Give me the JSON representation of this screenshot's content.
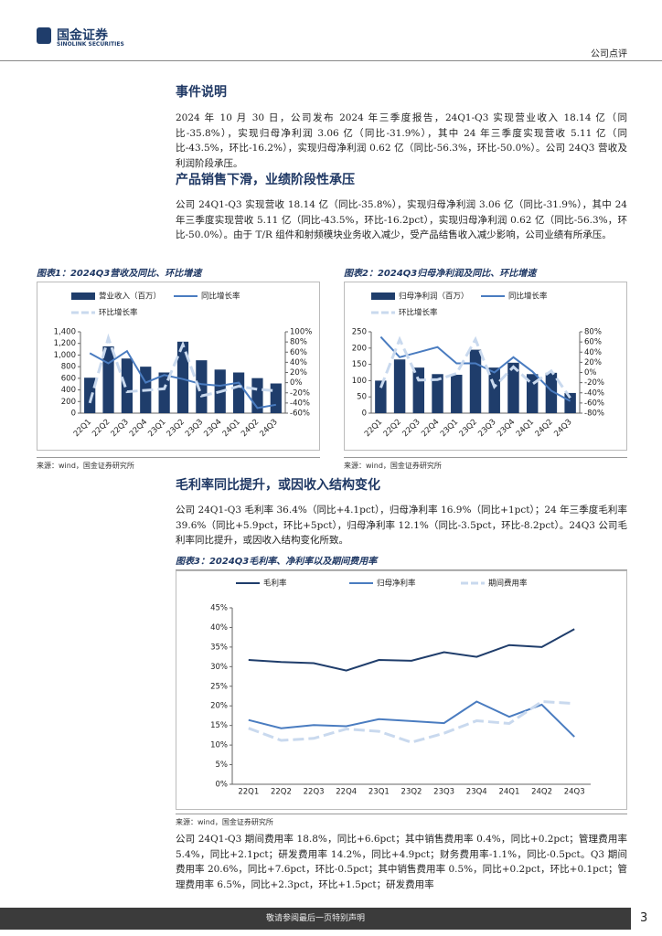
{
  "header": {
    "logo_cn": "国金证券",
    "logo_en": "SINOLINK SECURITIES",
    "doc_type": "公司点评"
  },
  "sections": [
    {
      "heading": "事件说明",
      "paragraph": "2024 年 10 月 30 日，公司发布 2024 年三季度报告，24Q1-Q3 实现营业收入 18.14 亿（同比-35.8%），实现归母净利润 3.06 亿（同比-31.9%），其中 24 年三季度实现营收 5.11 亿（同比-43.5%，环比-16.2%），实现归母净利润 0.62 亿（同比-56.3%，环比-50.0%）。公司 24Q3 营收及利润阶段承压。"
    },
    {
      "heading": "产品销售下滑，业绩阶段性承压",
      "paragraph": "公司 24Q1-Q3 实现营收 18.14 亿（同比-35.8%），实现归母净利润 3.06 亿（同比-31.9%），其中 24 年三季度实现营收 5.11 亿（同比-43.5%，环比-16.2pct），实现归母净利润 0.62 亿（同比-56.3%，环比-50.0%）。由于 T/R 组件和射频模块业务收入减少，受产品结售收入减少影响，公司业绩有所承压。"
    },
    {
      "heading": "毛利率同比提升，或因收入结构变化",
      "paragraph": "公司 24Q1-Q3 毛利率 36.4%（同比+4.1pct），归母净利率 16.9%（同比+1pct）；24 年三季度毛利率 39.6%（同比+5.9pct，环比+5pct），归母净利率 12.1%（同比-3.5pct，环比-8.2pct）。24Q3 公司毛利率同比提升，或因收入结构变化所致。"
    },
    {
      "paragraph": "公司 24Q1-Q3 期间费用率 18.8%，同比+6.6pct；其中销售费用率 0.4%，同比+0.2pct；管理费用率 5.4%，同比+2.1pct；研发费用率 14.2%，同比+4.9pct；财务费用率-1.1%，同比-0.5pct。Q3 期间费用率 20.6%，同比+7.6pct，环比-0.5pct；其中销售费用率 0.5%，同比+0.2pct，环比+0.1pct；管理费用率 6.5%，同比+2.3pct，环比+1.5pct；研发费用率"
    }
  ],
  "figures": [
    {
      "title": "图表1：2024Q3营收及同比、环比增速",
      "source": "来源：wind，国金证券研究所"
    },
    {
      "title": "图表2：2024Q3归母净利润及同比、环比增速",
      "source": "来源：wind，国金证券研究所"
    },
    {
      "title": "图表3：2024Q3毛利率、净利率以及期间费用率",
      "source": "来源：wind，国金证券研究所"
    }
  ],
  "chart_data": [
    {
      "type": "combo",
      "categories": [
        "22Q1",
        "22Q2",
        "22Q3",
        "22Q4",
        "23Q1",
        "23Q2",
        "23Q3",
        "23Q4",
        "24Q1",
        "24Q2",
        "24Q3"
      ],
      "ylim": [
        0,
        1400
      ],
      "yticks": [
        0,
        200,
        400,
        600,
        800,
        {
          "value": 1000,
          "label": "1,000"
        },
        {
          "value": 1200,
          "label": "1,200"
        },
        {
          "value": 1400,
          "label": "1,400"
        }
      ],
      "y2lim": [
        -60,
        100
      ],
      "y2ticks": [
        {
          "value": -60,
          "label": "-60%"
        },
        {
          "value": -40,
          "label": "-40%"
        },
        {
          "value": -20,
          "label": "-20%"
        },
        {
          "value": 0,
          "label": "0%"
        },
        {
          "value": 20,
          "label": "20%"
        },
        {
          "value": 40,
          "label": "40%"
        },
        {
          "value": 60,
          "label": "60%"
        },
        {
          "value": 80,
          "label": "80%"
        },
        {
          "value": 100,
          "label": "100%"
        }
      ],
      "series": [
        {
          "name": "营业收入（百万）",
          "type": "bar",
          "color": "#1f3d6b",
          "values": [
            610,
            1150,
            940,
            800,
            700,
            1230,
            910,
            750,
            700,
            603,
            511
          ]
        },
        {
          "name": "同比增长率",
          "type": "line",
          "axis": "y2",
          "color": "#4a7cc0",
          "values": [
            58,
            38,
            62,
            0,
            15,
            7,
            -3,
            -6,
            0,
            -50,
            -43.5
          ]
        },
        {
          "name": "环比增长率",
          "type": "line",
          "axis": "y2",
          "color": "#c9d9ee",
          "dash": true,
          "values": [
            -40,
            88,
            -18,
            -15,
            -12,
            75,
            -26,
            -18,
            -7,
            -13,
            -16.2
          ]
        }
      ]
    },
    {
      "type": "combo",
      "categories": [
        "22Q1",
        "22Q2",
        "22Q3",
        "22Q4",
        "23Q1",
        "23Q2",
        "23Q3",
        "23Q4",
        "24Q1",
        "24Q2",
        "24Q3"
      ],
      "ylim": [
        0,
        250
      ],
      "yticks": [
        0,
        50,
        100,
        150,
        200,
        250
      ],
      "y2lim": [
        -80,
        80
      ],
      "y2ticks": [
        {
          "value": -80,
          "label": "-80%"
        },
        {
          "value": -60,
          "label": "-60%"
        },
        {
          "value": -40,
          "label": "-40%"
        },
        {
          "value": -20,
          "label": "-20%"
        },
        {
          "value": 0,
          "label": "0%"
        },
        {
          "value": 20,
          "label": "20%"
        },
        {
          "value": 40,
          "label": "40%"
        },
        {
          "value": 60,
          "label": "60%"
        },
        {
          "value": 80,
          "label": "80%"
        }
      ],
      "series": [
        {
          "name": "归母净利润（百万）",
          "type": "bar",
          "color": "#1f3d6b",
          "values": [
            100,
            165,
            140,
            120,
            118,
            195,
            140,
            155,
            120,
            124,
            62
          ]
        },
        {
          "name": "同比增长率",
          "type": "line",
          "axis": "y2",
          "color": "#4a7cc0",
          "values": [
            70,
            30,
            40,
            50,
            18,
            18,
            0,
            30,
            2,
            -36,
            -56.3
          ]
        },
        {
          "name": "环比增长率",
          "type": "line",
          "axis": "y2",
          "color": "#c9d9ee",
          "dash": true,
          "values": [
            -30,
            65,
            -15,
            -14,
            -2,
            65,
            -28,
            11,
            -23,
            3,
            -50
          ]
        }
      ]
    },
    {
      "type": "line",
      "categories": [
        "22Q1",
        "22Q2",
        "22Q3",
        "22Q4",
        "23Q1",
        "23Q2",
        "23Q3",
        "23Q4",
        "24Q1",
        "24Q2",
        "24Q3"
      ],
      "ylim": [
        0,
        45
      ],
      "yticks": [
        {
          "value": 0,
          "label": "0%"
        },
        {
          "value": 5,
          "label": "5%"
        },
        {
          "value": 10,
          "label": "10%"
        },
        {
          "value": 15,
          "label": "15%"
        },
        {
          "value": 20,
          "label": "20%"
        },
        {
          "value": 25,
          "label": "25%"
        },
        {
          "value": 30,
          "label": "30%"
        },
        {
          "value": 35,
          "label": "35%"
        },
        {
          "value": 40,
          "label": "40%"
        },
        {
          "value": 45,
          "label": "45%"
        }
      ],
      "series": [
        {
          "name": "毛利率",
          "type": "line",
          "color": "#1f3d6b",
          "values": [
            31.7,
            31.2,
            30.9,
            29.0,
            31.7,
            31.5,
            33.7,
            32.5,
            35.5,
            35.0,
            39.6
          ]
        },
        {
          "name": "归母净利率",
          "type": "line",
          "color": "#4a7cc0",
          "values": [
            16.4,
            14.3,
            15.1,
            14.8,
            16.6,
            16.1,
            15.6,
            21.1,
            17.2,
            20.3,
            12.1
          ]
        },
        {
          "name": "期间费用率",
          "type": "line",
          "color": "#c9d9ee",
          "dash": true,
          "values": [
            14.3,
            11.2,
            11.7,
            14.1,
            13.5,
            10.7,
            13.0,
            16.2,
            15.5,
            21.1,
            20.6
          ]
        }
      ]
    }
  ],
  "footer": {
    "disclaimer": "敬请参阅最后一页特别声明",
    "page": 3
  }
}
